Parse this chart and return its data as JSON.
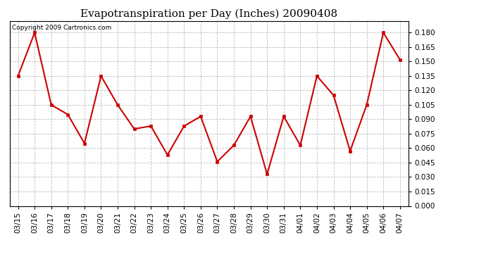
{
  "title": "Evapotranspiration per Day (Inches) 20090408",
  "copyright_text": "Copyright 2009 Cartronics.com",
  "x_labels": [
    "03/15",
    "03/16",
    "03/17",
    "03/18",
    "03/19",
    "03/20",
    "03/21",
    "03/22",
    "03/23",
    "03/24",
    "03/25",
    "03/26",
    "03/27",
    "03/28",
    "03/29",
    "03/30",
    "03/31",
    "04/01",
    "04/02",
    "04/03",
    "04/04",
    "04/05",
    "04/06",
    "04/07"
  ],
  "y_values": [
    0.135,
    0.18,
    0.105,
    0.095,
    0.065,
    0.135,
    0.105,
    0.08,
    0.083,
    0.053,
    0.083,
    0.093,
    0.046,
    0.063,
    0.093,
    0.033,
    0.093,
    0.063,
    0.135,
    0.115,
    0.057,
    0.105,
    0.18,
    0.152
  ],
  "line_color": "#cc0000",
  "marker": "s",
  "marker_size": 3,
  "grid_color": "#bbbbbb",
  "bg_color": "#ffffff",
  "ylim": [
    0.0,
    0.192
  ],
  "yticks": [
    0.0,
    0.015,
    0.03,
    0.045,
    0.06,
    0.075,
    0.09,
    0.105,
    0.12,
    0.135,
    0.15,
    0.165,
    0.18
  ],
  "title_fontsize": 11,
  "tick_fontsize": 7.5,
  "copyright_fontsize": 6.5
}
